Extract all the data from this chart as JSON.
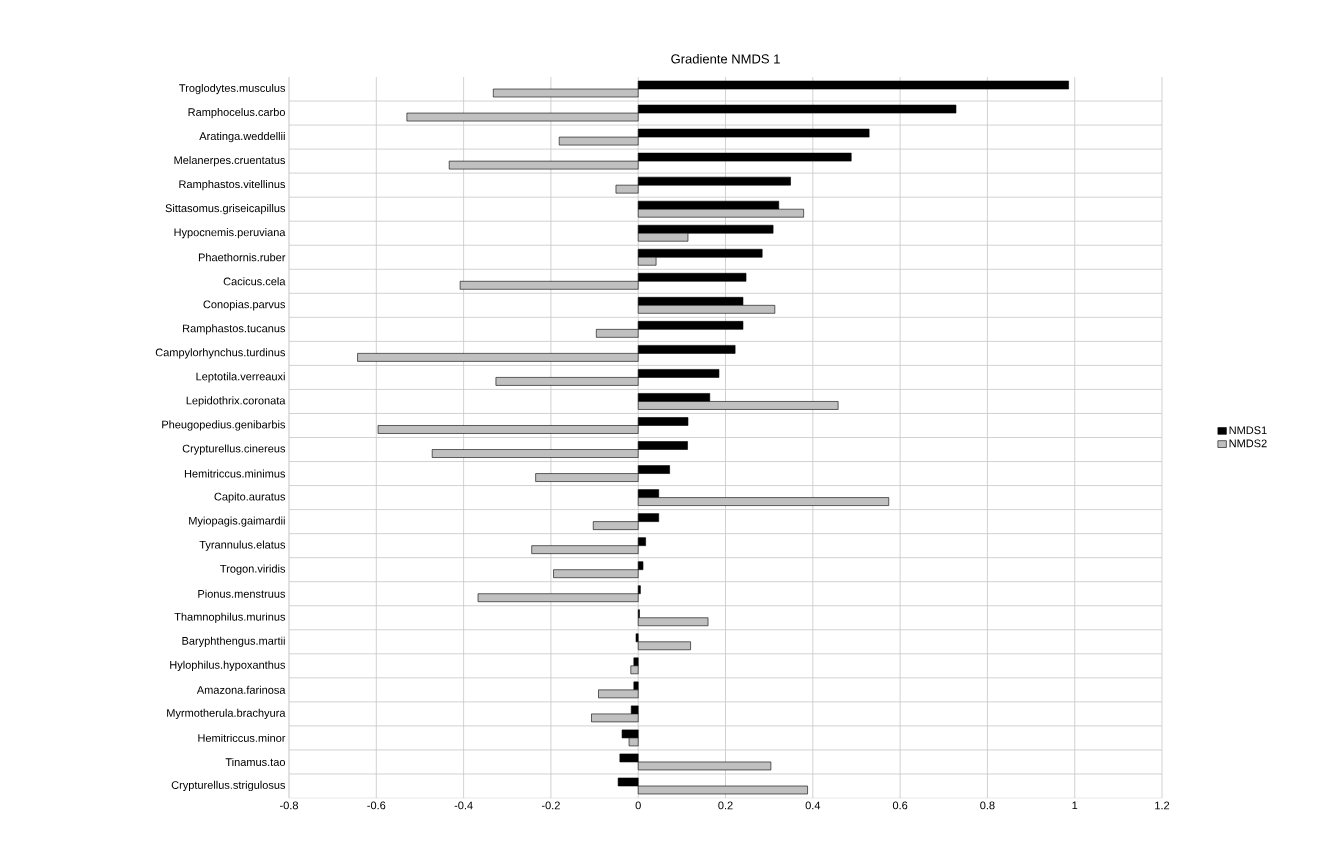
{
  "chart_data": {
    "type": "bar",
    "orientation": "horizontal",
    "title": "Gradiente NMDS 1",
    "categories": [
      "Troglodytes.musculus",
      "Ramphocelus.carbo",
      "Aratinga.weddellii",
      "Melanerpes.cruentatus",
      "Ramphastos.vitellinus",
      "Sittasomus.griseicapillus",
      "Hypocnemis.peruviana",
      "Phaethornis.ruber",
      "Cacicus.cela",
      "Conopias.parvus",
      "Ramphastos.tucanus",
      "Campylorhynchus.turdinus",
      "Leptotila.verreauxi",
      "Lepidothrix.coronata",
      "Pheugopedius.genibarbis",
      "Crypturellus.cinereus",
      "Hemitriccus.minimus",
      "Capito.auratus",
      "Myiopagis.gaimardii",
      "Tyrannulus.elatus",
      "Trogon.viridis",
      "Pionus.menstruus",
      "Thamnophilus.murinus",
      "Baryphthengus.martii",
      "Hylophilus.hypoxanthus",
      "Amazona.farinosa",
      "Myrmotherula.brachyura",
      "Hemitriccus.minor",
      "Tinamus.tao",
      "Crypturellus.strigulosus"
    ],
    "series": [
      {
        "name": "NMDS1",
        "color": "#000000",
        "values": [
          0.986,
          0.728,
          0.529,
          0.488,
          0.349,
          0.322,
          0.309,
          0.284,
          0.247,
          0.24,
          0.24,
          0.222,
          0.185,
          0.164,
          0.114,
          0.113,
          0.072,
          0.047,
          0.047,
          0.017,
          0.011,
          0.005,
          0.003,
          -0.005,
          -0.01,
          -0.01,
          -0.016,
          -0.037,
          -0.042,
          -0.046
        ]
      },
      {
        "name": "NMDS2",
        "color": "#c0c0c0",
        "values": [
          -0.332,
          -0.53,
          -0.181,
          -0.433,
          -0.051,
          0.379,
          0.114,
          0.041,
          -0.408,
          0.313,
          -0.096,
          -0.643,
          -0.326,
          0.458,
          -0.596,
          -0.472,
          -0.235,
          0.574,
          -0.103,
          -0.244,
          -0.194,
          -0.367,
          0.16,
          0.12,
          -0.017,
          -0.091,
          -0.107,
          -0.021,
          0.304,
          0.388
        ]
      }
    ],
    "xlim": [
      -0.8,
      1.2
    ],
    "xticks": [
      -0.8,
      -0.6,
      -0.4,
      -0.2,
      0,
      0.2,
      0.4,
      0.6,
      0.8,
      1,
      1.2
    ],
    "grid": true,
    "legend": "right"
  }
}
